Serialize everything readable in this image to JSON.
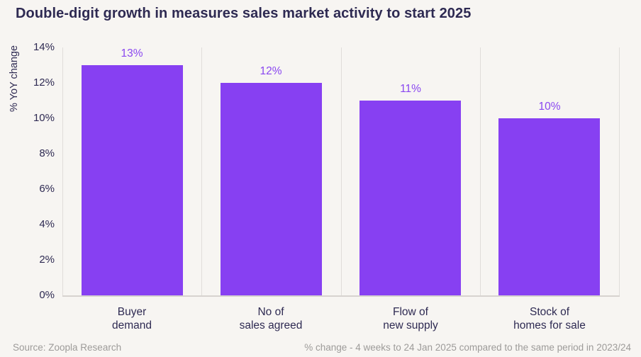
{
  "title": "Double-digit growth in measures sales market activity to start 2025",
  "colors": {
    "background": "#F7F5F2",
    "bar": "#8740F2",
    "value_label": "#8A47F0",
    "title_text": "#2E2A52",
    "axis_text": "#2E2A52",
    "grid_line": "#E0DDDA",
    "axis_line": "#D7D3CF",
    "footer_text": "#9D9B99"
  },
  "chart_data": {
    "type": "bar",
    "title": "Double-digit growth in measures sales market activity to start 2025",
    "categories": [
      "Buyer\ndemand",
      "No of\nsales agreed",
      "Flow of\nnew supply",
      "Stock of\nhomes for sale"
    ],
    "values": [
      13,
      12,
      11,
      10
    ],
    "value_labels": [
      "13%",
      "12%",
      "11%",
      "10%"
    ],
    "xlabel": "",
    "ylabel": "% YoY change",
    "ylim": [
      0,
      14
    ],
    "yticks": [
      "0%",
      "2%",
      "4%",
      "6%",
      "8%",
      "10%",
      "12%",
      "14%"
    ],
    "grid": "vertical category separators only, framed right edge, no horizontal gridlines",
    "legend": "none"
  },
  "footer": {
    "source": "Source: Zoopla Research",
    "note": "% change - 4 weeks to 24 Jan 2025 compared to the same period in 2023/24"
  }
}
